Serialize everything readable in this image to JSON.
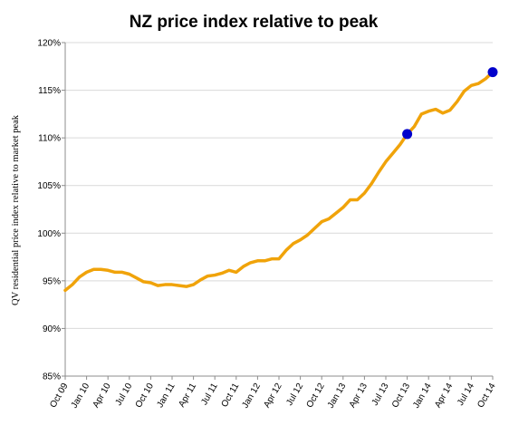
{
  "chart_data": {
    "type": "line",
    "title": "NZ price index relative to peak",
    "xlabel": "",
    "ylabel": "QV residential price index relative to market peak",
    "ylim": [
      85,
      120
    ],
    "y_ticks": [
      "85%",
      "90%",
      "95%",
      "100%",
      "105%",
      "110%",
      "115%",
      "120%"
    ],
    "y_tick_values": [
      85,
      90,
      95,
      100,
      105,
      110,
      115,
      120
    ],
    "x_ticks": [
      "Oct 09",
      "Jan 10",
      "Apr 10",
      "Jul 10",
      "Oct 10",
      "Jan 11",
      "Apr 11",
      "Jul 11",
      "Oct 11",
      "Jan 12",
      "Apr 12",
      "Jul 12",
      "Oct 12",
      "Jan 13",
      "Apr 13",
      "Jul 13",
      "Oct 13",
      "Jan 14",
      "Apr 14",
      "Jul 14",
      "Oct 14"
    ],
    "grid": true,
    "line_color": "#f0a30a",
    "marker_color": "#0000cc",
    "series": [
      {
        "x": [
          "Oct 09",
          "Nov 09",
          "Dec 09",
          "Jan 10",
          "Feb 10",
          "Mar 10",
          "Apr 10",
          "May 10",
          "Jun 10",
          "Jul 10",
          "Aug 10",
          "Sep 10",
          "Oct 10",
          "Nov 10",
          "Dec 10",
          "Jan 11",
          "Feb 11",
          "Mar 11",
          "Apr 11",
          "May 11",
          "Jun 11",
          "Jul 11",
          "Aug 11",
          "Sep 11",
          "Oct 11",
          "Nov 11",
          "Dec 11",
          "Jan 12",
          "Feb 12",
          "Mar 12",
          "Apr 12",
          "May 12",
          "Jun 12",
          "Jul 12",
          "Aug 12",
          "Sep 12",
          "Oct 12",
          "Nov 12",
          "Dec 12",
          "Jan 13",
          "Feb 13",
          "Mar 13",
          "Apr 13",
          "May 13",
          "Jun 13",
          "Jul 13",
          "Aug 13",
          "Sep 13",
          "Oct 13",
          "Nov 13",
          "Dec 13",
          "Jan 14",
          "Feb 14",
          "Mar 14",
          "Apr 14",
          "May 14",
          "Jun 14",
          "Jul 14",
          "Aug 14",
          "Sep 14",
          "Oct 14"
        ],
        "values": [
          94.0,
          94.6,
          95.4,
          95.9,
          96.2,
          96.2,
          96.1,
          95.9,
          95.9,
          95.7,
          95.3,
          94.9,
          94.8,
          94.5,
          94.6,
          94.6,
          94.5,
          94.4,
          94.6,
          95.1,
          95.5,
          95.6,
          95.8,
          96.1,
          95.9,
          96.5,
          96.9,
          97.1,
          97.1,
          97.3,
          97.3,
          98.2,
          98.9,
          99.3,
          99.8,
          100.5,
          101.2,
          101.5,
          102.1,
          102.7,
          103.5,
          103.5,
          104.2,
          105.2,
          106.4,
          107.5,
          108.4,
          109.3,
          110.4,
          111.2,
          112.5,
          112.8,
          113.0,
          112.6,
          112.9,
          113.8,
          114.9,
          115.5,
          115.7,
          116.2,
          116.9
        ]
      }
    ],
    "markers": [
      {
        "x": "Oct 13",
        "value": 110.4
      },
      {
        "x": "Oct 14",
        "value": 116.9
      }
    ]
  }
}
